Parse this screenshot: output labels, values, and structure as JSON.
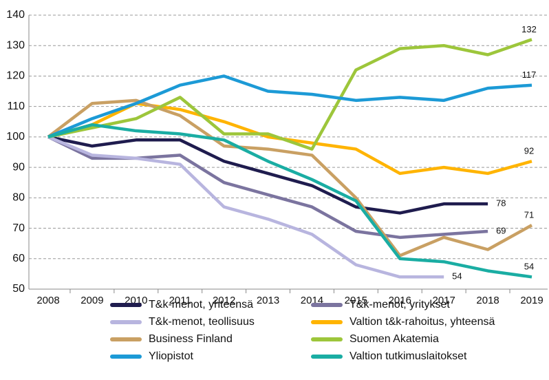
{
  "chart_data": {
    "type": "line",
    "x": [
      "2008",
      "2009",
      "2010",
      "2011",
      "2012",
      "2013",
      "2014",
      "2015",
      "2016",
      "2017",
      "2018",
      "2019"
    ],
    "ylim": [
      50,
      140
    ],
    "yticks": [
      50,
      60,
      70,
      80,
      90,
      100,
      110,
      120,
      130,
      140
    ],
    "grid": true,
    "legend": "bottom",
    "series": [
      {
        "name": "T&k-menot, yhteensä",
        "color": "#1f1c4e",
        "values": [
          100,
          97,
          99,
          99,
          92,
          88,
          84,
          77,
          75,
          78,
          78,
          null
        ]
      },
      {
        "name": "T&k-menot, yritykset",
        "color": "#7b749f",
        "values": [
          100,
          93,
          93,
          94,
          85,
          81,
          77,
          69,
          67,
          68,
          69,
          null
        ]
      },
      {
        "name": "T&k-menot, teollisuus",
        "color": "#b8b5df",
        "values": [
          100,
          94,
          93,
          91,
          77,
          73,
          68,
          58,
          54,
          54,
          null,
          null
        ]
      },
      {
        "name": "Valtion t&k-rahoitus, yhteensä",
        "color": "#ffb400",
        "values": [
          100,
          104,
          111,
          109,
          105,
          100,
          98,
          96,
          88,
          90,
          88,
          92
        ]
      },
      {
        "name": "Business Finland",
        "color": "#c9a063",
        "values": [
          100,
          111,
          112,
          107,
          97,
          96,
          94,
          80,
          61,
          67,
          63,
          71
        ]
      },
      {
        "name": "Suomen Akatemia",
        "color": "#9dc63b",
        "values": [
          100,
          103,
          106,
          113,
          101,
          101,
          96,
          122,
          129,
          130,
          127,
          132
        ]
      },
      {
        "name": "Yliopistot",
        "color": "#1c9ad6",
        "values": [
          100,
          106,
          111,
          117,
          120,
          115,
          114,
          112,
          113,
          112,
          116,
          117
        ]
      },
      {
        "name": "Valtion tutkimuslaitokset",
        "color": "#1aada3",
        "values": [
          100,
          104,
          102,
          101,
          99,
          92,
          86,
          79,
          60,
          59,
          56,
          54
        ]
      }
    ]
  }
}
